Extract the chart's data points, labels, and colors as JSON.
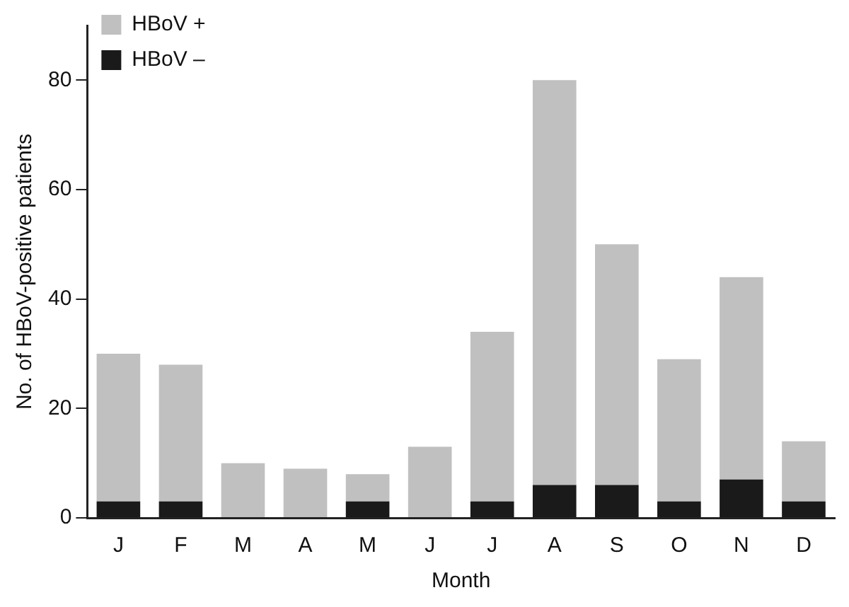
{
  "chart_data": {
    "type": "bar",
    "stacked": true,
    "xlabel": "Month",
    "ylabel": "No. of HBoV-positive patients",
    "categories": [
      "J",
      "F",
      "M",
      "A",
      "M",
      "J",
      "J",
      "A",
      "S",
      "O",
      "N",
      "D"
    ],
    "series": [
      {
        "name": "HBoV –",
        "color": "#1a1a1a",
        "values": [
          3,
          3,
          0,
          0,
          3,
          0,
          3,
          6,
          6,
          3,
          7,
          3
        ]
      },
      {
        "name": "HBoV +",
        "color": "#c0c0c0",
        "values": [
          27,
          25,
          10,
          9,
          5,
          13,
          31,
          74,
          44,
          26,
          37,
          11
        ]
      }
    ],
    "ylim": [
      0,
      90
    ],
    "yticks": [
      0,
      20,
      40,
      60,
      80
    ],
    "grid": false,
    "legend": "top left"
  }
}
